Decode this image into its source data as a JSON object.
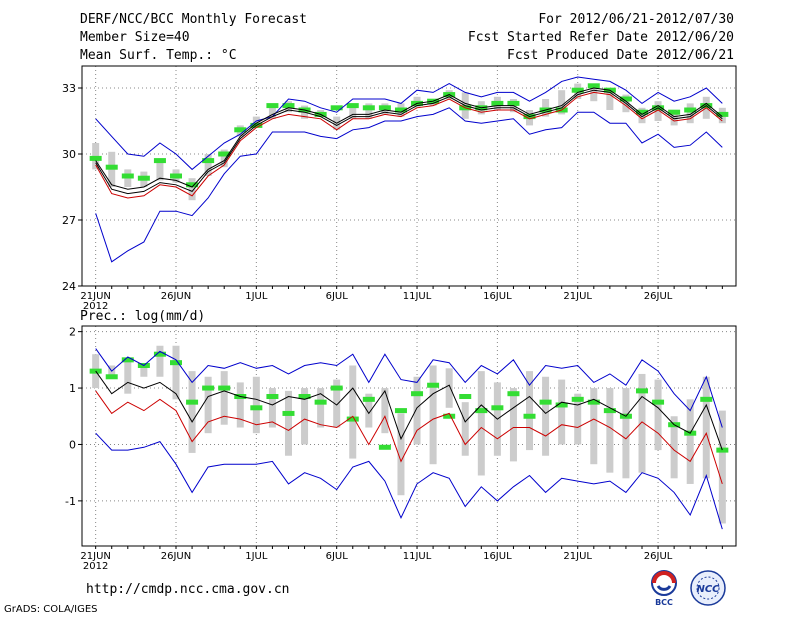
{
  "header": {
    "title": "DERF/NCC/BCC Monthly Forecast",
    "member_size": "Member Size=40",
    "variable1": "Mean Surf. Temp.: °C",
    "period": "For 2012/06/21-2012/07/30",
    "start_date": "Fcst Started Refer Date 2012/06/20",
    "produced_date": "Fcst Produced Date 2012/06/21"
  },
  "variable2": "Prec.: log(mm/d)",
  "footer": {
    "url": "http://cmdp.ncc.cma.gov.cn",
    "credit": "GrADS: COLA/IGES"
  },
  "logos": {
    "bcc": "BCC",
    "ncc": "NCC"
  },
  "colors": {
    "max_min": "#0000cc",
    "ens_mean": "#000000",
    "ctrl": "#cc0000",
    "median": "#33dd33",
    "box": "#cccccc",
    "grid": "#888888"
  },
  "chart_data": [
    {
      "type": "line",
      "title": "Mean Surf. Temp.: °C",
      "x_labels": [
        "21JUN",
        "26JUN",
        "1JUL",
        "6JUL",
        "11JUL",
        "16JUL",
        "21JUL",
        "26JUL"
      ],
      "x_label_days": [
        1,
        6,
        11,
        16,
        21,
        26,
        31,
        36
      ],
      "year_label": "2012",
      "y_ticks": [
        24,
        27,
        30,
        33
      ],
      "ylim": [
        24,
        34
      ],
      "days": [
        1,
        2,
        3,
        4,
        5,
        6,
        7,
        8,
        9,
        10,
        11,
        12,
        13,
        14,
        15,
        16,
        17,
        18,
        19,
        20,
        21,
        22,
        23,
        24,
        25,
        26,
        27,
        28,
        29,
        30,
        31,
        32,
        33,
        34,
        35,
        36,
        37,
        38,
        39,
        40
      ],
      "series": [
        {
          "name": "max",
          "color": "#0000cc",
          "values": [
            31.6,
            30.8,
            30.0,
            29.9,
            30.5,
            30.0,
            29.3,
            29.9,
            30.5,
            30.9,
            31.5,
            31.7,
            32.5,
            32.4,
            32.1,
            31.9,
            32.5,
            32.5,
            32.5,
            32.3,
            32.9,
            32.8,
            33.2,
            32.8,
            32.6,
            32.8,
            32.8,
            32.4,
            32.8,
            33.3,
            33.5,
            33.4,
            33.3,
            32.9,
            32.3,
            32.8,
            32.4,
            32.6,
            33.0,
            32.3
          ]
        },
        {
          "name": "ens_mean",
          "color": "#000000",
          "values": [
            29.6,
            28.4,
            28.2,
            28.3,
            28.7,
            28.6,
            28.3,
            29.2,
            29.6,
            30.7,
            31.3,
            31.7,
            32.0,
            31.9,
            31.7,
            31.3,
            31.7,
            31.7,
            31.9,
            31.8,
            32.2,
            32.3,
            32.6,
            32.2,
            32.0,
            32.1,
            32.1,
            31.7,
            31.9,
            32.1,
            32.7,
            32.9,
            32.8,
            32.3,
            31.7,
            32.1,
            31.6,
            31.7,
            32.2,
            31.6
          ]
        },
        {
          "name": "ctrl",
          "color": "#cc0000",
          "values": [
            29.5,
            28.2,
            28.0,
            28.1,
            28.6,
            28.5,
            28.1,
            29.0,
            29.5,
            30.6,
            31.2,
            31.6,
            31.8,
            31.7,
            31.6,
            31.1,
            31.6,
            31.6,
            31.8,
            31.7,
            32.1,
            32.2,
            32.5,
            32.1,
            31.9,
            32.0,
            32.0,
            31.6,
            31.8,
            32.0,
            32.6,
            32.8,
            32.7,
            32.2,
            31.6,
            32.0,
            31.5,
            31.6,
            32.1,
            31.5
          ]
        },
        {
          "name": "ens_mean_b",
          "color": "#000000",
          "values": [
            29.7,
            28.6,
            28.4,
            28.5,
            28.9,
            28.8,
            28.5,
            29.3,
            29.7,
            30.8,
            31.4,
            31.8,
            32.1,
            32.0,
            31.8,
            31.4,
            31.8,
            31.8,
            32.0,
            31.9,
            32.3,
            32.4,
            32.7,
            32.3,
            32.1,
            32.2,
            32.2,
            31.8,
            32.0,
            32.2,
            32.8,
            33.0,
            32.9,
            32.4,
            31.8,
            32.2,
            31.7,
            31.8,
            32.3,
            31.7
          ]
        },
        {
          "name": "min",
          "color": "#0000cc",
          "values": [
            27.3,
            25.1,
            25.6,
            26.0,
            27.4,
            27.4,
            27.2,
            28.0,
            29.1,
            29.9,
            30.0,
            31.0,
            31.0,
            31.0,
            30.8,
            30.7,
            31.1,
            31.2,
            31.5,
            31.5,
            31.7,
            31.8,
            32.1,
            31.5,
            31.4,
            31.5,
            31.6,
            30.9,
            31.1,
            31.2,
            31.9,
            31.9,
            31.4,
            31.4,
            30.5,
            30.9,
            30.3,
            30.4,
            31.0,
            30.3
          ]
        }
      ],
      "box_low": [
        29.3,
        28.5,
        28.5,
        28.5,
        28.8,
        28.7,
        27.9,
        29.0,
        29.4,
        30.8,
        31.2,
        31.6,
        31.9,
        31.6,
        31.7,
        31.1,
        31.6,
        31.6,
        31.8,
        31.7,
        32.1,
        32.2,
        32.5,
        31.6,
        31.8,
        32.0,
        31.9,
        31.3,
        31.7,
        31.8,
        32.5,
        32.4,
        32.0,
        31.9,
        31.4,
        31.5,
        31.3,
        31.4,
        31.6,
        31.4
      ],
      "box_high": [
        30.5,
        30.1,
        29.3,
        29.2,
        29.8,
        29.3,
        28.9,
        30.0,
        30.2,
        31.3,
        31.7,
        32.1,
        32.4,
        32.2,
        32.0,
        31.7,
        32.2,
        32.3,
        32.3,
        32.3,
        32.6,
        32.5,
        32.9,
        32.8,
        32.4,
        32.6,
        32.5,
        32.0,
        32.5,
        32.9,
        33.2,
        33.2,
        33.0,
        32.7,
        32.1,
        32.4,
        32.0,
        32.3,
        32.6,
        32.1
      ],
      "median": [
        29.8,
        29.4,
        29.0,
        28.9,
        29.7,
        29.0,
        28.6,
        29.7,
        30.0,
        31.1,
        31.3,
        32.2,
        32.2,
        32.0,
        31.8,
        32.1,
        32.2,
        32.1,
        32.1,
        32.0,
        32.3,
        32.4,
        32.7,
        32.1,
        32.1,
        32.3,
        32.3,
        31.7,
        32.0,
        32.0,
        32.9,
        33.1,
        32.9,
        32.5,
        31.9,
        32.1,
        31.9,
        32.0,
        32.2,
        31.8
      ]
    },
    {
      "type": "line",
      "title": "Prec.: log(mm/d)",
      "x_labels": [
        "21JUN",
        "26JUN",
        "1JUL",
        "6JUL",
        "11JUL",
        "16JUL",
        "21JUL",
        "26JUL"
      ],
      "x_label_days": [
        1,
        6,
        11,
        16,
        21,
        26,
        31,
        36
      ],
      "year_label": "2012",
      "y_ticks": [
        -1,
        0,
        1,
        2
      ],
      "ylim": [
        -1.8,
        2.1
      ],
      "days": [
        1,
        2,
        3,
        4,
        5,
        6,
        7,
        8,
        9,
        10,
        11,
        12,
        13,
        14,
        15,
        16,
        17,
        18,
        19,
        20,
        21,
        22,
        23,
        24,
        25,
        26,
        27,
        28,
        29,
        30,
        31,
        32,
        33,
        34,
        35,
        36,
        37,
        38,
        39,
        40
      ],
      "series": [
        {
          "name": "max",
          "color": "#0000cc",
          "values": [
            1.7,
            1.3,
            1.55,
            1.4,
            1.65,
            1.5,
            1.1,
            1.4,
            1.35,
            1.45,
            1.35,
            1.4,
            1.25,
            1.4,
            1.45,
            1.4,
            1.6,
            1.1,
            1.6,
            1.15,
            1.1,
            1.5,
            1.45,
            1.1,
            1.4,
            1.25,
            1.5,
            1.05,
            1.4,
            1.35,
            1.4,
            1.1,
            1.25,
            1.05,
            1.5,
            1.3,
            0.9,
            0.6,
            1.2,
            0.3
          ]
        },
        {
          "name": "ens_mean",
          "color": "#000000",
          "values": [
            1.3,
            0.9,
            1.1,
            1.0,
            1.1,
            0.9,
            0.4,
            0.85,
            0.95,
            0.85,
            0.8,
            0.7,
            0.85,
            0.8,
            0.9,
            0.7,
            1.0,
            0.55,
            0.95,
            0.1,
            0.65,
            0.9,
            1.05,
            0.4,
            0.7,
            0.45,
            0.65,
            0.85,
            0.55,
            0.75,
            0.7,
            0.8,
            0.65,
            0.5,
            0.85,
            0.65,
            0.35,
            0.2,
            0.7,
            -0.1
          ]
        },
        {
          "name": "ctrl",
          "color": "#cc0000",
          "values": [
            0.95,
            0.55,
            0.75,
            0.6,
            0.8,
            0.6,
            0.05,
            0.4,
            0.5,
            0.45,
            0.35,
            0.4,
            0.25,
            0.45,
            0.35,
            0.3,
            0.5,
            0.0,
            0.5,
            -0.3,
            0.25,
            0.45,
            0.55,
            0.0,
            0.3,
            0.1,
            0.3,
            0.3,
            0.15,
            0.35,
            0.3,
            0.45,
            0.3,
            0.1,
            0.4,
            0.2,
            -0.1,
            -0.3,
            0.2,
            -0.7
          ]
        },
        {
          "name": "min",
          "color": "#0000cc",
          "values": [
            0.2,
            -0.1,
            -0.1,
            -0.05,
            0.05,
            -0.35,
            -0.85,
            -0.4,
            -0.35,
            -0.35,
            -0.35,
            -0.3,
            -0.7,
            -0.5,
            -0.6,
            -0.8,
            -0.4,
            -0.3,
            -0.65,
            -1.3,
            -0.7,
            -0.5,
            -0.6,
            -1.1,
            -0.75,
            -1.0,
            -0.75,
            -0.55,
            -0.85,
            -0.6,
            -0.65,
            -0.7,
            -0.65,
            -0.85,
            -0.5,
            -0.6,
            -0.85,
            -1.25,
            -0.55,
            -1.5
          ]
        }
      ],
      "box_low": [
        1.0,
        1.2,
        0.9,
        1.2,
        1.2,
        0.8,
        -0.15,
        0.2,
        0.35,
        0.3,
        0.2,
        0.3,
        -0.2,
        0.0,
        0.3,
        0.3,
        -0.25,
        0.3,
        0.2,
        -0.9,
        0.0,
        -0.35,
        0.65,
        -0.2,
        -0.55,
        -0.2,
        -0.3,
        -0.1,
        -0.2,
        0.0,
        0.0,
        -0.35,
        -0.5,
        -0.6,
        -0.5,
        -0.1,
        -0.6,
        -0.7,
        -0.6,
        -1.4
      ],
      "box_high": [
        1.6,
        1.4,
        1.5,
        1.4,
        1.75,
        1.75,
        1.3,
        1.2,
        1.3,
        1.1,
        1.2,
        1.0,
        0.95,
        1.0,
        1.0,
        1.15,
        1.4,
        0.9,
        1.0,
        0.55,
        1.2,
        1.4,
        1.35,
        0.75,
        1.3,
        1.1,
        1.0,
        1.3,
        1.2,
        1.15,
        0.9,
        1.0,
        1.0,
        1.0,
        1.25,
        1.15,
        0.5,
        0.8,
        1.2,
        0.6
      ],
      "median": [
        1.3,
        1.2,
        1.5,
        1.4,
        1.6,
        1.45,
        0.75,
        1.0,
        1.0,
        0.85,
        0.65,
        0.85,
        0.55,
        0.85,
        0.75,
        1.0,
        0.45,
        0.8,
        -0.05,
        0.6,
        0.9,
        1.05,
        0.5,
        0.85,
        0.6,
        0.65,
        0.9,
        0.5,
        0.75,
        0.7,
        0.8,
        0.75,
        0.6,
        0.5,
        0.95,
        0.75,
        0.35,
        0.2,
        0.8,
        -0.1
      ]
    }
  ]
}
